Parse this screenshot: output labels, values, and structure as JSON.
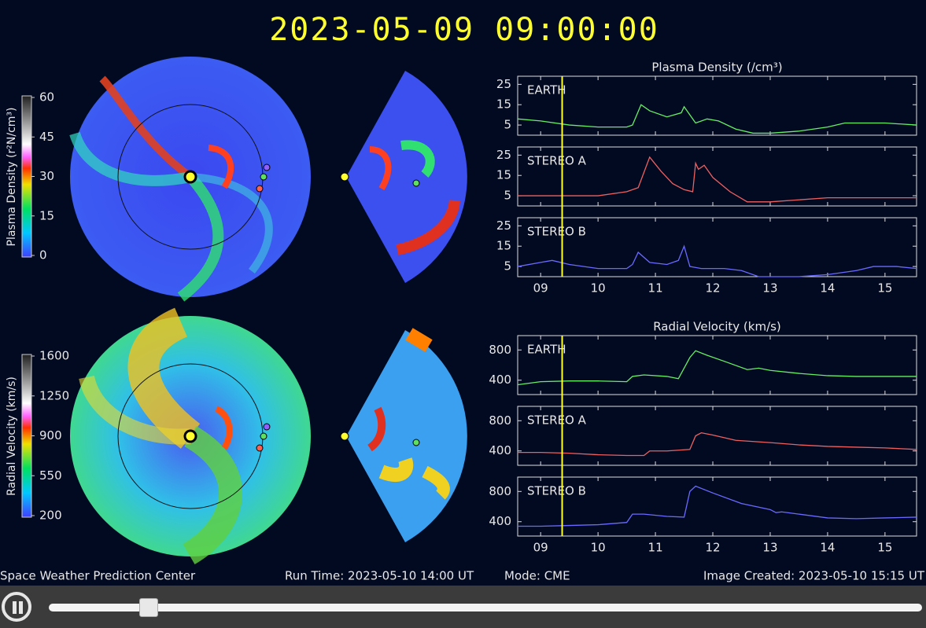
{
  "header": {
    "timestamp": "2023-05-09  09:00:00"
  },
  "colorbars": [
    {
      "label": "Plasma Density (r²N/cm³)",
      "ylim": [
        0,
        60
      ],
      "ticks": [
        0,
        15,
        30,
        45,
        60
      ]
    },
    {
      "label": "Radial Velocity (km/s)",
      "ylim": [
        200,
        1600
      ],
      "ticks": [
        200,
        550,
        900,
        1250,
        1600
      ]
    }
  ],
  "chart_data": [
    {
      "type": "line",
      "title": "Plasma Density (/cm³)",
      "xlim": [
        8.6,
        15.55
      ],
      "xticks": [
        {
          "value": 9,
          "label": "09"
        },
        {
          "value": 10,
          "label": "10"
        },
        {
          "value": 11,
          "label": "11"
        },
        {
          "value": 12,
          "label": "12"
        },
        {
          "value": 13,
          "label": "13"
        },
        {
          "value": 14,
          "label": "14"
        },
        {
          "value": 15,
          "label": "15"
        }
      ],
      "ylim": [
        0,
        29
      ],
      "yticks": [
        5,
        15,
        25
      ],
      "marker_x": 9.375,
      "series": [
        {
          "name": "EARTH",
          "color": "#66ee66",
          "x": [
            8.6,
            9,
            9.5,
            10,
            10.5,
            10.6,
            10.75,
            10.9,
            11.2,
            11.45,
            11.5,
            11.6,
            11.7,
            11.9,
            12.1,
            12.4,
            12.7,
            13,
            13.5,
            14,
            14.3,
            14.5,
            15,
            15.55
          ],
          "values": [
            8,
            7,
            5,
            4,
            4,
            5,
            15,
            12,
            9,
            11,
            14,
            10,
            6,
            8,
            7,
            3,
            1,
            1,
            2,
            4,
            6,
            6,
            6,
            5
          ]
        },
        {
          "name": "STEREO A",
          "color": "#ee6060",
          "x": [
            8.6,
            9,
            9.5,
            10,
            10.5,
            10.7,
            10.9,
            11.1,
            11.3,
            11.5,
            11.65,
            11.7,
            11.75,
            11.85,
            12,
            12.3,
            12.6,
            13,
            13.5,
            14,
            14.5,
            15,
            15.55
          ],
          "values": [
            5,
            5,
            5,
            5,
            7,
            9,
            24,
            17,
            11,
            8,
            7,
            21,
            18,
            20,
            14,
            7,
            2,
            2,
            3,
            4,
            4,
            4,
            4
          ]
        },
        {
          "name": "STEREO B",
          "color": "#6a6aff",
          "x": [
            8.6,
            9,
            9.2,
            9.5,
            10,
            10.5,
            10.6,
            10.7,
            10.9,
            11.2,
            11.4,
            11.5,
            11.6,
            11.8,
            12.2,
            12.5,
            12.8,
            13.5,
            14,
            14.5,
            14.8,
            15.2,
            15.55
          ],
          "values": [
            5,
            7,
            8,
            6,
            4,
            4,
            6,
            12,
            7,
            6,
            8,
            15,
            5,
            4,
            4,
            3,
            0,
            0,
            1,
            3,
            5,
            5,
            4
          ]
        }
      ]
    },
    {
      "type": "line",
      "title": "Radial Velocity (km/s)",
      "xlim": [
        8.6,
        15.55
      ],
      "xticks": [
        {
          "value": 9,
          "label": "09"
        },
        {
          "value": 10,
          "label": "10"
        },
        {
          "value": 11,
          "label": "11"
        },
        {
          "value": 12,
          "label": "12"
        },
        {
          "value": 13,
          "label": "13"
        },
        {
          "value": 14,
          "label": "14"
        },
        {
          "value": 15,
          "label": "15"
        }
      ],
      "ylim": [
        210,
        990
      ],
      "yticks": [
        400,
        800
      ],
      "marker_x": 9.375,
      "series": [
        {
          "name": "EARTH",
          "color": "#66ee66",
          "x": [
            8.6,
            9,
            9.5,
            10,
            10.5,
            10.6,
            10.8,
            11.2,
            11.4,
            11.6,
            11.7,
            11.9,
            12.2,
            12.6,
            12.8,
            13,
            13.5,
            14,
            14.5,
            15,
            15.55
          ],
          "values": [
            340,
            380,
            390,
            390,
            380,
            450,
            470,
            450,
            420,
            700,
            790,
            730,
            650,
            540,
            560,
            530,
            490,
            460,
            450,
            450,
            450
          ]
        },
        {
          "name": "STEREO A",
          "color": "#ee6060",
          "x": [
            8.6,
            9,
            9.5,
            10,
            10.5,
            10.8,
            10.9,
            11.2,
            11.6,
            11.7,
            11.8,
            12,
            12.4,
            13,
            13.5,
            14,
            14.5,
            15,
            15.55
          ],
          "values": [
            380,
            380,
            370,
            350,
            340,
            340,
            400,
            400,
            420,
            600,
            640,
            610,
            540,
            510,
            480,
            460,
            450,
            440,
            420
          ]
        },
        {
          "name": "STEREO B",
          "color": "#6a6aff",
          "x": [
            8.6,
            9,
            9.5,
            10,
            10.5,
            10.6,
            10.8,
            11.2,
            11.5,
            11.6,
            11.7,
            12,
            12.5,
            13,
            13.1,
            13.2,
            13.5,
            14,
            14.5,
            15,
            15.55
          ],
          "values": [
            340,
            340,
            350,
            360,
            390,
            500,
            500,
            470,
            460,
            800,
            870,
            780,
            640,
            560,
            520,
            530,
            500,
            450,
            440,
            450,
            460
          ]
        }
      ]
    }
  ],
  "footer": {
    "source": "Space Weather Prediction Center",
    "run_time": "Run Time: 2023-05-10 14:00 UT",
    "mode": "Mode: CME",
    "created": "Image Created: 2023-05-10 15:15 UT"
  }
}
